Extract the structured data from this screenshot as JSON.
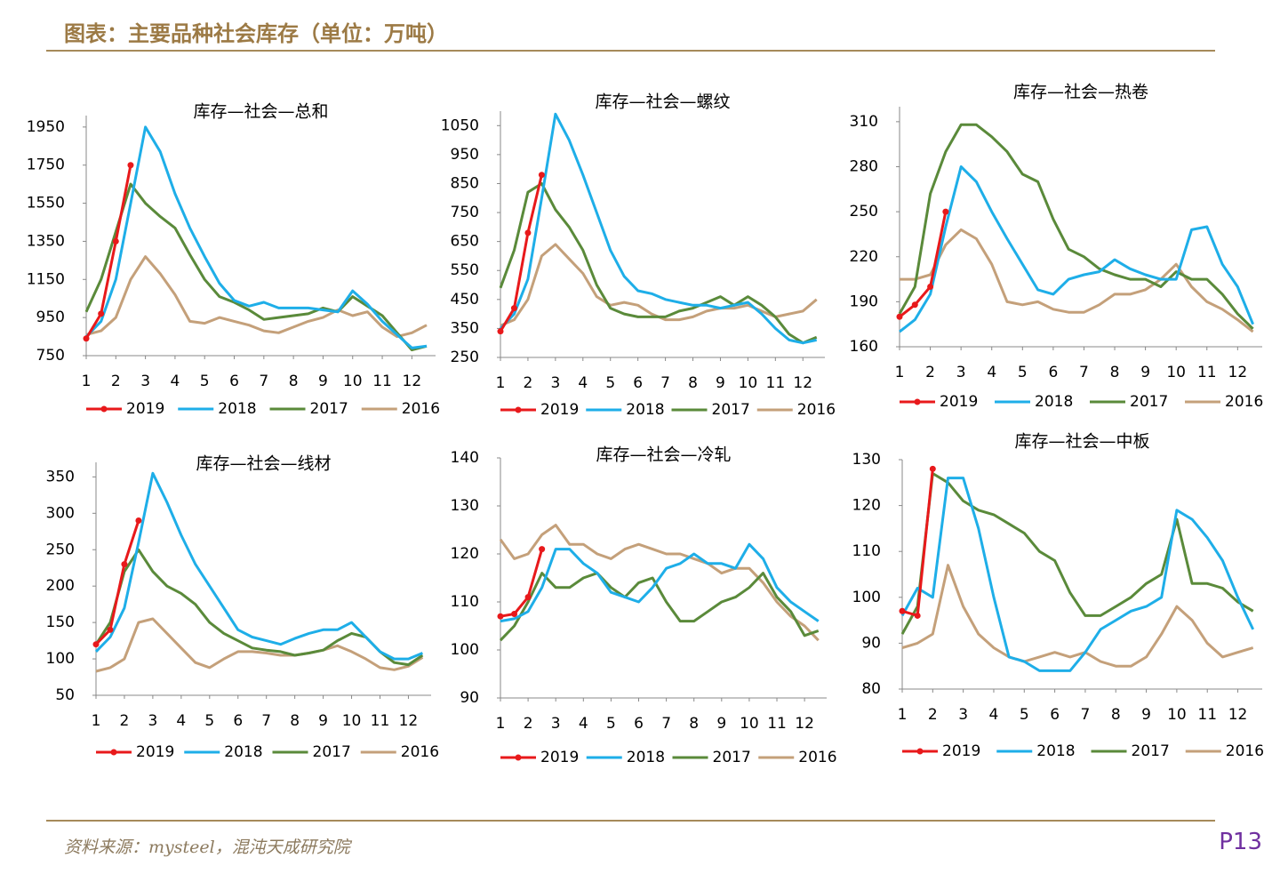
{
  "header": {
    "title": "图表：主要品种社会库存（单位：万吨）"
  },
  "footer": {
    "source": "资料来源：mysteel，混沌天成研究院",
    "page": "P13"
  },
  "chart_data": [
    {
      "type": "line",
      "title": "库存—社会—总和",
      "x": [
        1,
        1.5,
        2,
        2.5,
        3,
        3.5,
        4,
        4.5,
        5,
        5.5,
        6,
        6.5,
        7,
        7.5,
        8,
        8.5,
        9,
        9.5,
        10,
        10.5,
        11,
        11.5,
        12,
        12.5
      ],
      "xlim": [
        1,
        12.8
      ],
      "xticks": [
        1,
        2,
        3,
        4,
        5,
        6,
        7,
        8,
        9,
        10,
        11,
        12
      ],
      "ylim": [
        750,
        2010
      ],
      "yticks": [
        750,
        950,
        1150,
        1350,
        1550,
        1750,
        1950
      ],
      "series": [
        {
          "name": "2019",
          "color": "#e8191b",
          "markers": true,
          "values": [
            840,
            970,
            1350,
            1750,
            null,
            null,
            null,
            null,
            null,
            null,
            null,
            null,
            null,
            null,
            null,
            null,
            null,
            null,
            null,
            null,
            null,
            null,
            null,
            null
          ]
        },
        {
          "name": "2018",
          "color": "#1eaee8",
          "values": [
            850,
            930,
            1150,
            1550,
            1950,
            1820,
            1600,
            1420,
            1270,
            1130,
            1040,
            1010,
            1030,
            1000,
            1000,
            1000,
            990,
            980,
            1090,
            1020,
            930,
            860,
            790,
            800
          ]
        },
        {
          "name": "2017",
          "color": "#5a8a3a",
          "values": [
            980,
            1150,
            1400,
            1650,
            1550,
            1480,
            1420,
            1280,
            1150,
            1060,
            1030,
            990,
            940,
            950,
            960,
            970,
            1000,
            980,
            1060,
            1010,
            960,
            870,
            780,
            800
          ]
        },
        {
          "name": "2016",
          "color": "#c4a07a",
          "values": [
            860,
            880,
            950,
            1150,
            1270,
            1180,
            1070,
            930,
            920,
            950,
            930,
            910,
            880,
            870,
            900,
            930,
            950,
            990,
            960,
            980,
            900,
            850,
            870,
            910
          ]
        }
      ]
    },
    {
      "type": "line",
      "title": "库存—社会—螺纹",
      "x": [
        1,
        1.5,
        2,
        2.5,
        3,
        3.5,
        4,
        4.5,
        5,
        5.5,
        6,
        6.5,
        7,
        7.5,
        8,
        8.5,
        9,
        9.5,
        10,
        10.5,
        11,
        11.5,
        12,
        12.5
      ],
      "xlim": [
        1,
        12.8
      ],
      "xticks": [
        1,
        2,
        3,
        4,
        5,
        6,
        7,
        8,
        9,
        10,
        11,
        12
      ],
      "ylim": [
        250,
        1100
      ],
      "yticks": [
        250,
        350,
        450,
        550,
        650,
        750,
        850,
        950,
        1050
      ],
      "series": [
        {
          "name": "2019",
          "color": "#e8191b",
          "markers": true,
          "values": [
            340,
            420,
            680,
            880,
            null,
            null,
            null,
            null,
            null,
            null,
            null,
            null,
            null,
            null,
            null,
            null,
            null,
            null,
            null,
            null,
            null,
            null,
            null,
            null
          ]
        },
        {
          "name": "2018",
          "color": "#1eaee8",
          "values": [
            350,
            400,
            520,
            800,
            1090,
            1000,
            880,
            750,
            620,
            530,
            480,
            470,
            450,
            440,
            430,
            430,
            420,
            430,
            440,
            400,
            350,
            310,
            300,
            310
          ]
        },
        {
          "name": "2017",
          "color": "#5a8a3a",
          "values": [
            490,
            620,
            820,
            850,
            760,
            700,
            620,
            500,
            420,
            400,
            390,
            390,
            390,
            410,
            420,
            440,
            460,
            430,
            460,
            430,
            390,
            330,
            300,
            320
          ]
        },
        {
          "name": "2016",
          "color": "#c4a07a",
          "values": [
            360,
            380,
            450,
            600,
            640,
            590,
            540,
            460,
            430,
            440,
            430,
            400,
            380,
            380,
            390,
            410,
            420,
            420,
            430,
            410,
            390,
            400,
            410,
            450
          ]
        }
      ]
    },
    {
      "type": "line",
      "title": "库存—社会—热卷",
      "x": [
        1,
        1.5,
        2,
        2.5,
        3,
        3.5,
        4,
        4.5,
        5,
        5.5,
        6,
        6.5,
        7,
        7.5,
        8,
        8.5,
        9,
        9.5,
        10,
        10.5,
        11,
        11.5,
        12,
        12.5
      ],
      "xlim": [
        1,
        12.8
      ],
      "xticks": [
        1,
        2,
        3,
        4,
        5,
        6,
        7,
        8,
        9,
        10,
        11,
        12
      ],
      "ylim": [
        160,
        320
      ],
      "yticks": [
        160,
        190,
        220,
        250,
        280,
        310
      ],
      "series": [
        {
          "name": "2019",
          "color": "#e8191b",
          "markers": true,
          "values": [
            180,
            188,
            200,
            250,
            null,
            null,
            null,
            null,
            null,
            null,
            null,
            null,
            null,
            null,
            null,
            null,
            null,
            null,
            null,
            null,
            null,
            null,
            null,
            null
          ]
        },
        {
          "name": "2018",
          "color": "#1eaee8",
          "values": [
            170,
            178,
            195,
            240,
            280,
            270,
            250,
            232,
            215,
            198,
            195,
            205,
            208,
            210,
            218,
            212,
            208,
            205,
            205,
            238,
            240,
            215,
            200,
            175
          ]
        },
        {
          "name": "2017",
          "color": "#5a8a3a",
          "values": [
            182,
            200,
            262,
            290,
            308,
            308,
            300,
            290,
            275,
            270,
            245,
            225,
            220,
            212,
            208,
            205,
            205,
            200,
            210,
            205,
            205,
            195,
            182,
            172
          ]
        },
        {
          "name": "2016",
          "color": "#c4a07a",
          "values": [
            205,
            205,
            208,
            228,
            238,
            232,
            215,
            190,
            188,
            190,
            185,
            183,
            183,
            188,
            195,
            195,
            198,
            205,
            215,
            200,
            190,
            185,
            178,
            170
          ]
        }
      ]
    },
    {
      "type": "line",
      "title": "库存—社会—线材",
      "x": [
        1,
        1.5,
        2,
        2.5,
        3,
        3.5,
        4,
        4.5,
        5,
        5.5,
        6,
        6.5,
        7,
        7.5,
        8,
        8.5,
        9,
        9.5,
        10,
        10.5,
        11,
        11.5,
        12,
        12.5
      ],
      "xlim": [
        1,
        12.8
      ],
      "xticks": [
        1,
        2,
        3,
        4,
        5,
        6,
        7,
        8,
        9,
        10,
        11,
        12
      ],
      "ylim": [
        50,
        370
      ],
      "yticks": [
        50,
        100,
        150,
        200,
        250,
        300,
        350
      ],
      "series": [
        {
          "name": "2019",
          "color": "#e8191b",
          "markers": true,
          "values": [
            120,
            140,
            230,
            290,
            null,
            null,
            null,
            null,
            null,
            null,
            null,
            null,
            null,
            null,
            null,
            null,
            null,
            null,
            null,
            null,
            null,
            null,
            null,
            null
          ]
        },
        {
          "name": "2018",
          "color": "#1eaee8",
          "values": [
            110,
            130,
            170,
            260,
            355,
            315,
            270,
            230,
            200,
            170,
            140,
            130,
            125,
            120,
            128,
            135,
            140,
            140,
            150,
            130,
            110,
            100,
            100,
            108
          ]
        },
        {
          "name": "2017",
          "color": "#5a8a3a",
          "values": [
            120,
            150,
            220,
            250,
            220,
            200,
            190,
            175,
            150,
            135,
            125,
            115,
            112,
            110,
            105,
            108,
            112,
            125,
            135,
            130,
            110,
            95,
            92,
            105
          ]
        },
        {
          "name": "2016",
          "color": "#c4a07a",
          "values": [
            83,
            88,
            100,
            150,
            155,
            135,
            115,
            95,
            88,
            100,
            110,
            110,
            108,
            105,
            105,
            108,
            112,
            118,
            110,
            100,
            88,
            85,
            90,
            102
          ]
        }
      ]
    },
    {
      "type": "line",
      "title": "库存—社会—冷轧",
      "x": [
        1,
        1.5,
        2,
        2.5,
        3,
        3.5,
        4,
        4.5,
        5,
        5.5,
        6,
        6.5,
        7,
        7.5,
        8,
        8.5,
        9,
        9.5,
        10,
        10.5,
        11,
        11.5,
        12,
        12.5
      ],
      "xlim": [
        1,
        12.8
      ],
      "xticks": [
        1,
        2,
        3,
        4,
        5,
        6,
        7,
        8,
        9,
        10,
        11,
        12
      ],
      "ylim": [
        90,
        140
      ],
      "yticks": [
        90,
        100,
        110,
        120,
        130,
        140
      ],
      "series": [
        {
          "name": "2019",
          "color": "#e8191b",
          "markers": true,
          "values": [
            107,
            107.5,
            111,
            121,
            null,
            null,
            null,
            null,
            null,
            null,
            null,
            null,
            null,
            null,
            null,
            null,
            null,
            null,
            null,
            null,
            null,
            null,
            null,
            null
          ]
        },
        {
          "name": "2018",
          "color": "#1eaee8",
          "values": [
            106,
            106.5,
            108,
            113,
            121,
            121,
            118,
            116,
            112,
            111,
            110,
            113,
            117,
            118,
            120,
            118,
            118,
            117,
            122,
            119,
            113,
            110,
            108,
            106
          ]
        },
        {
          "name": "2017",
          "color": "#5a8a3a",
          "values": [
            102,
            105,
            110,
            116,
            113,
            113,
            115,
            116,
            113,
            111,
            114,
            115,
            110,
            106,
            106,
            108,
            110,
            111,
            113,
            116,
            111,
            108,
            103,
            104
          ]
        },
        {
          "name": "2016",
          "color": "#c4a07a",
          "values": [
            123,
            119,
            120,
            124,
            126,
            122,
            122,
            120,
            119,
            121,
            122,
            121,
            120,
            120,
            119,
            118,
            116,
            117,
            117,
            114,
            110,
            107,
            105,
            102
          ]
        }
      ]
    },
    {
      "type": "line",
      "title": "库存—社会—中板",
      "x": [
        1,
        1.5,
        2,
        2.5,
        3,
        3.5,
        4,
        4.5,
        5,
        5.5,
        6,
        6.5,
        7,
        7.5,
        8,
        8.5,
        9,
        9.5,
        10,
        10.5,
        11,
        11.5,
        12,
        12.5
      ],
      "xlim": [
        1,
        12.8
      ],
      "xticks": [
        1,
        2,
        3,
        4,
        5,
        6,
        7,
        8,
        9,
        10,
        11,
        12
      ],
      "ylim": [
        80,
        130
      ],
      "yticks": [
        80,
        90,
        100,
        110,
        120,
        130
      ],
      "series": [
        {
          "name": "2019",
          "color": "#e8191b",
          "markers": true,
          "values": [
            97,
            96,
            128,
            null,
            null,
            null,
            null,
            null,
            null,
            null,
            null,
            null,
            null,
            null,
            null,
            null,
            null,
            null,
            null,
            null,
            null,
            null,
            null,
            null
          ]
        },
        {
          "name": "2018",
          "color": "#1eaee8",
          "values": [
            96,
            102,
            100,
            126,
            126,
            115,
            100,
            87,
            86,
            84,
            84,
            84,
            88,
            93,
            95,
            97,
            98,
            100,
            119,
            117,
            113,
            108,
            100,
            93
          ]
        },
        {
          "name": "2017",
          "color": "#5a8a3a",
          "values": [
            92,
            98,
            127,
            125,
            121,
            119,
            118,
            116,
            114,
            110,
            108,
            101,
            96,
            96,
            98,
            100,
            103,
            105,
            117,
            103,
            103,
            102,
            99,
            97
          ]
        },
        {
          "name": "2016",
          "color": "#c4a07a",
          "values": [
            89,
            90,
            92,
            107,
            98,
            92,
            89,
            87,
            86,
            87,
            88,
            87,
            88,
            86,
            85,
            85,
            87,
            92,
            98,
            95,
            90,
            87,
            88,
            89
          ]
        }
      ]
    }
  ]
}
